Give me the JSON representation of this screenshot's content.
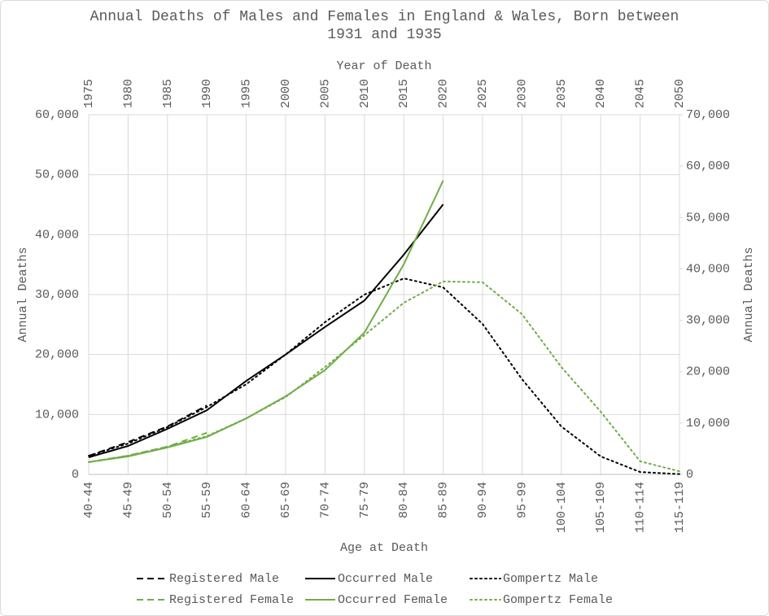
{
  "chart_data": {
    "type": "line",
    "title": "Annual Deaths of Males and Females in England & Wales, Born between 1931 and 1935",
    "x_label": "Age at Death",
    "x2_label": "Year of Death",
    "y_label": "Annual Deaths",
    "y2_label": "Annual Deaths",
    "categories": [
      "40-44",
      "45-49",
      "50-54",
      "55-59",
      "60-64",
      "65-69",
      "70-74",
      "75-79",
      "80-84",
      "85-89",
      "90-94",
      "95-99",
      "100-104",
      "105-109",
      "110-114",
      "115-119"
    ],
    "x2lim": [
      1975,
      2050
    ],
    "x2ticks": [
      1975,
      1980,
      1985,
      1990,
      1995,
      2000,
      2005,
      2010,
      2015,
      2020,
      2025,
      2030,
      2035,
      2040,
      2045,
      2050
    ],
    "ylim": [
      0,
      60000
    ],
    "yticks": [
      0,
      {
        "value": 10000,
        "label": "10,000"
      },
      {
        "value": 20000,
        "label": "20,000"
      },
      {
        "value": 30000,
        "label": "30,000"
      },
      {
        "value": 40000,
        "label": "40,000"
      },
      {
        "value": 50000,
        "label": "50,000"
      },
      {
        "value": 60000,
        "label": "60,000"
      }
    ],
    "y2lim": [
      0,
      70000
    ],
    "y2ticks": [
      0,
      {
        "value": 10000,
        "label": "10,000"
      },
      {
        "value": 20000,
        "label": "20,000"
      },
      {
        "value": 30000,
        "label": "30,000"
      },
      {
        "value": 40000,
        "label": "40,000"
      },
      {
        "value": 50000,
        "label": "50,000"
      },
      {
        "value": 60000,
        "label": "60,000"
      },
      {
        "value": 70000,
        "label": "70,000"
      }
    ],
    "grid": true,
    "legend": "bottom",
    "series": [
      {
        "name": "Registered Male",
        "color": "#000000",
        "dash": "dashed",
        "values": [
          3100,
          5400,
          8000,
          11500,
          null,
          null,
          null,
          null,
          null,
          null,
          null,
          null,
          null,
          null,
          null,
          null
        ]
      },
      {
        "name": "Occurred Male",
        "color": "#000000",
        "dash": "solid",
        "values": [
          2850,
          4750,
          7600,
          10700,
          15600,
          20000,
          24600,
          29000,
          36650,
          45050,
          null,
          null,
          null,
          null,
          null,
          null
        ]
      },
      {
        "name": "Gompertz Male",
        "color": "#000000",
        "dash": "dotted",
        "values": [
          3100,
          5150,
          7900,
          11250,
          15050,
          20000,
          25400,
          30000,
          32700,
          31200,
          25100,
          15900,
          8000,
          3000,
          400,
          50
        ]
      },
      {
        "name": "Registered Female",
        "color": "#70ad47",
        "dash": "dashed",
        "axis": "y2",
        "values": [
          2400,
          3650,
          5400,
          8100,
          null,
          null,
          null,
          null,
          null,
          null,
          null,
          null,
          null,
          null,
          null,
          null
        ]
      },
      {
        "name": "Occurred Female",
        "color": "#70ad47",
        "dash": "solid",
        "axis": "y2",
        "values": [
          2400,
          3500,
          5250,
          7300,
          10900,
          15200,
          20300,
          27600,
          40900,
          57200,
          null,
          null,
          null,
          null,
          null,
          null
        ]
      },
      {
        "name": "Gompertz Female",
        "color": "#70ad47",
        "dash": "dotted",
        "axis": "y2",
        "values": [
          2400,
          3650,
          5400,
          7450,
          10900,
          15050,
          20900,
          27100,
          33400,
          37550,
          37400,
          31200,
          20900,
          12200,
          2550,
          600
        ]
      }
    ]
  }
}
